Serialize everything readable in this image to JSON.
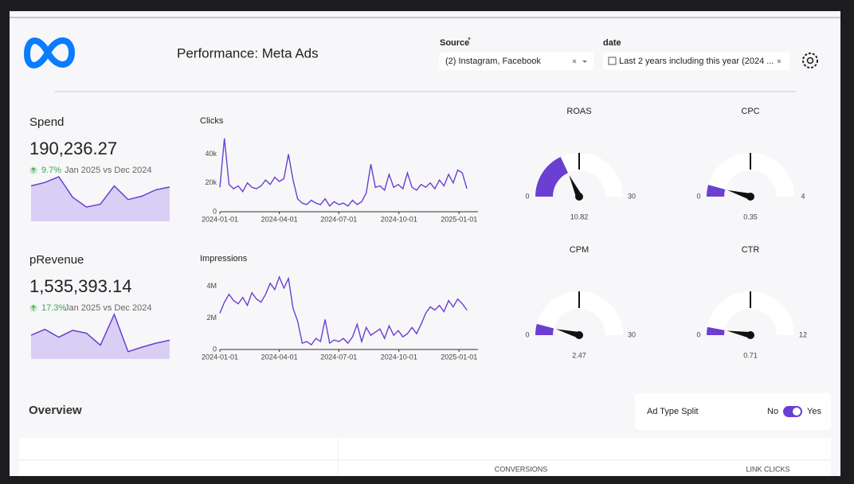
{
  "header": {
    "title": "Performance: Meta Ads",
    "source_label": "Source",
    "source_required": "*",
    "source_value": "(2) Instagram, Facebook",
    "date_label": "date",
    "date_value": "Last 2 years including this year (2024 ..."
  },
  "kpis": [
    {
      "label": "Spend",
      "value": "190,236.27",
      "change": "9.7%",
      "period": "Jan 2025 vs Dec 2024",
      "sparkline": [
        62,
        68,
        78,
        42,
        25,
        30,
        62,
        38,
        44,
        55,
        60
      ]
    },
    {
      "label": "pRevenue",
      "value": "1,535,393.14",
      "change": "17.3%",
      "period": "Jan 2025 vs Dec 2024",
      "sparkline": [
        48,
        60,
        44,
        58,
        52,
        28,
        90,
        15,
        24,
        32,
        38
      ]
    }
  ],
  "charts": [
    {
      "type": "line",
      "title": "Clicks",
      "color": "#6a3fd1",
      "x": [
        "2024-01-01",
        "2024-01-08",
        "2024-01-15",
        "2024-01-22",
        "2024-01-29",
        "2024-02-05",
        "2024-02-12",
        "2024-02-19",
        "2024-02-26",
        "2024-03-04",
        "2024-03-11",
        "2024-03-18",
        "2024-03-25",
        "2024-04-01",
        "2024-04-08",
        "2024-04-15",
        "2024-04-22",
        "2024-04-29",
        "2024-05-06",
        "2024-05-13",
        "2024-05-20",
        "2024-05-27",
        "2024-06-03",
        "2024-06-10",
        "2024-06-17",
        "2024-06-24",
        "2024-07-01",
        "2024-07-08",
        "2024-07-15",
        "2024-07-22",
        "2024-07-29",
        "2024-08-05",
        "2024-08-12",
        "2024-08-19",
        "2024-08-26",
        "2024-09-02",
        "2024-09-09",
        "2024-09-16",
        "2024-09-23",
        "2024-09-30",
        "2024-10-07",
        "2024-10-14",
        "2024-10-21",
        "2024-10-28",
        "2024-11-04",
        "2024-11-11",
        "2024-11-18",
        "2024-11-25",
        "2024-12-02",
        "2024-12-09",
        "2024-12-16",
        "2024-12-23",
        "2024-12-30",
        "2025-01-06",
        "2025-01-13"
      ],
      "values": [
        17000,
        51000,
        19000,
        16000,
        18000,
        14000,
        20000,
        17000,
        16000,
        18000,
        22000,
        19000,
        24000,
        21000,
        23000,
        40000,
        22000,
        9000,
        6000,
        5000,
        8000,
        6000,
        5000,
        9000,
        4000,
        7000,
        5000,
        6000,
        4000,
        8000,
        5000,
        7000,
        13000,
        33000,
        17000,
        18000,
        15000,
        26000,
        17000,
        19000,
        16000,
        27000,
        17000,
        15000,
        19000,
        17000,
        20000,
        16000,
        22000,
        18000,
        26000,
        20000,
        29000,
        27000,
        16000
      ],
      "xlim": [
        "2024-01-01",
        "2025-01-30"
      ],
      "xticks": [
        "2024-01-01",
        "2024-04-01",
        "2024-07-01",
        "2024-10-01",
        "2025-01-01"
      ],
      "ylim": [
        0,
        52000
      ],
      "yticks": [
        0,
        {
          "value": 20000,
          "label": "20k"
        },
        {
          "value": 40000,
          "label": "40k"
        }
      ]
    },
    {
      "type": "line",
      "title": "Impressions",
      "color": "#6a3fd1",
      "x": [
        "2024-01-01",
        "2024-01-08",
        "2024-01-15",
        "2024-01-22",
        "2024-01-29",
        "2024-02-05",
        "2024-02-12",
        "2024-02-19",
        "2024-02-26",
        "2024-03-04",
        "2024-03-11",
        "2024-03-18",
        "2024-03-25",
        "2024-04-01",
        "2024-04-08",
        "2024-04-15",
        "2024-04-22",
        "2024-04-29",
        "2024-05-06",
        "2024-05-13",
        "2024-05-20",
        "2024-05-27",
        "2024-06-03",
        "2024-06-10",
        "2024-06-17",
        "2024-06-24",
        "2024-07-01",
        "2024-07-08",
        "2024-07-15",
        "2024-07-22",
        "2024-07-29",
        "2024-08-05",
        "2024-08-12",
        "2024-08-19",
        "2024-08-26",
        "2024-09-02",
        "2024-09-09",
        "2024-09-16",
        "2024-09-23",
        "2024-09-30",
        "2024-10-07",
        "2024-10-14",
        "2024-10-21",
        "2024-10-28",
        "2024-11-04",
        "2024-11-11",
        "2024-11-18",
        "2024-11-25",
        "2024-12-02",
        "2024-12-09",
        "2024-12-16",
        "2024-12-23",
        "2024-12-30",
        "2025-01-06",
        "2025-01-13"
      ],
      "values": [
        2300000,
        3000000,
        3500000,
        3100000,
        2900000,
        3300000,
        2800000,
        3600000,
        3200000,
        3000000,
        3500000,
        4200000,
        3800000,
        4600000,
        3900000,
        4500000,
        2600000,
        1800000,
        400000,
        500000,
        300000,
        700000,
        500000,
        1900000,
        400000,
        600000,
        500000,
        700000,
        400000,
        800000,
        1600000,
        500000,
        1400000,
        900000,
        1100000,
        1300000,
        700000,
        1500000,
        900000,
        1200000,
        800000,
        1000000,
        1400000,
        1000000,
        1600000,
        2300000,
        2700000,
        2500000,
        2800000,
        2400000,
        3100000,
        2700000,
        3200000,
        2900000,
        2500000
      ],
      "xlim": [
        "2024-01-01",
        "2025-01-30"
      ],
      "xticks": [
        "2024-01-01",
        "2024-04-01",
        "2024-07-01",
        "2024-10-01",
        "2025-01-01"
      ],
      "ylim": [
        0,
        5000000
      ],
      "yticks": [
        0,
        {
          "value": 2000000,
          "label": "2M"
        },
        {
          "value": 4000000,
          "label": "4M"
        }
      ]
    }
  ],
  "gauges": [
    {
      "title": "ROAS",
      "min": 0,
      "max": 30,
      "value": 10.82,
      "color": "#6a3fd1"
    },
    {
      "title": "CPC",
      "min": 0,
      "max": 4,
      "value": 0.35,
      "color": "#6a3fd1"
    },
    {
      "title": "CPM",
      "min": 0,
      "max": 30,
      "value": 2.47,
      "color": "#6a3fd1"
    },
    {
      "title": "CTR",
      "min": 0,
      "max": 12,
      "value": 0.71,
      "color": "#6a3fd1"
    }
  ],
  "overview": {
    "title": "Overview",
    "toggle_label": "Ad Type Split",
    "toggle_off": "No",
    "toggle_on": "Yes",
    "toggle": true,
    "columns": [
      "CONVERSIONS",
      "LINK CLICKS"
    ]
  }
}
